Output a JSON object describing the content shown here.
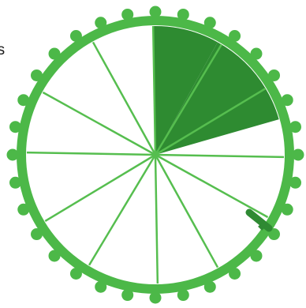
{
  "wheel": {
    "segments_total": 12,
    "segments_filled": 2.5,
    "colors": {
      "rim": "#4cb848",
      "filled": "#2e8b31",
      "divider": "#56be4f",
      "empty": "#ffffff",
      "pointer": "#2f8a33"
    },
    "studs": 32
  },
  "label": {
    "visible_text": "es"
  },
  "pointer": {
    "icon": "pushpin-icon"
  }
}
